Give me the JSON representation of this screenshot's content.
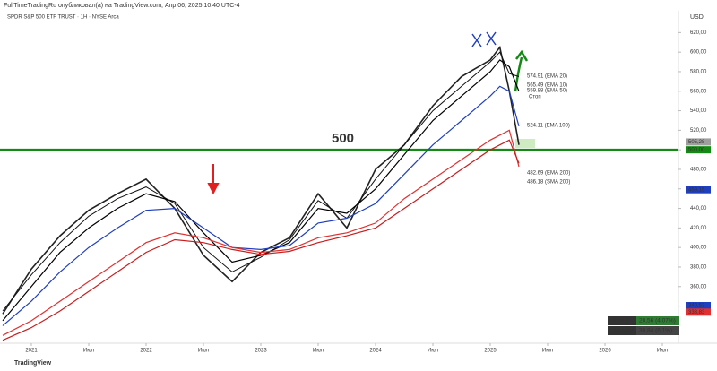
{
  "chart_data": {
    "type": "line",
    "title": "SPDR S&P 500 ETF TRUST · 1H · NYSE Arca",
    "header": "FullTimeTradingRu опубликовал(а) на TradingView.com, Апр 06, 2025 10:40 UTC-4",
    "currency": "USD",
    "brand": "TradingView",
    "x": [
      "2020-10",
      "2021-01",
      "2021-04",
      "2021-07",
      "2021-10",
      "2022-01",
      "2022-04",
      "2022-07",
      "2022-10",
      "2023-01",
      "2023-04",
      "2023-07",
      "2023-10",
      "2024-01",
      "2024-04",
      "2024-07",
      "2024-10",
      "2025-01",
      "2025-02",
      "2025-03",
      "2025-04"
    ],
    "series": [
      {
        "color": "#222222",
        "width": 1.6,
        "values": [
          332,
          378,
          412,
          438,
          455,
          470,
          440,
          392,
          365,
          395,
          410,
          455,
          420,
          480,
          505,
          545,
          575,
          592,
          605,
          560,
          505
        ]
      },
      {
        "name": "EMA 20",
        "color": "#111111",
        "width": 1,
        "values": [
          335,
          372,
          405,
          432,
          450,
          462,
          445,
          400,
          375,
          390,
          408,
          448,
          430,
          470,
          505,
          540,
          565,
          590,
          600,
          578,
          574.91
        ]
      },
      {
        "name": "EMA 50",
        "color": "#000000",
        "width": 1.2,
        "values": [
          325,
          360,
          395,
          420,
          440,
          455,
          447,
          415,
          385,
          392,
          405,
          440,
          435,
          460,
          495,
          530,
          555,
          580,
          592,
          585,
          559.88
        ]
      },
      {
        "name": "EMA 100",
        "color": "#1f3fbf",
        "width": 1.2,
        "values": [
          320,
          345,
          375,
          400,
          420,
          438,
          440,
          420,
          400,
          398,
          402,
          425,
          430,
          445,
          475,
          505,
          530,
          555,
          565,
          560,
          524.11
        ]
      },
      {
        "name": "EMA 200",
        "color": "#e03030",
        "width": 1.2,
        "values": [
          310,
          325,
          345,
          365,
          385,
          405,
          415,
          410,
          400,
          395,
          398,
          410,
          415,
          425,
          450,
          470,
          490,
          510,
          515,
          520,
          482.69
        ]
      },
      {
        "name": "SMA 200",
        "color": "#c81e1e",
        "width": 1.2,
        "values": [
          305,
          318,
          335,
          355,
          375,
          395,
          408,
          405,
          398,
          393,
          396,
          405,
          412,
          420,
          440,
          460,
          480,
          500,
          505,
          510,
          486.18
        ]
      }
    ],
    "level": {
      "value": 500,
      "label": "500",
      "color": "#138a13"
    },
    "annotations": [
      "574.91 (EMA 20)",
      "565.49 (EMA 10)",
      "559.88 (EMA 50)",
      "Стоп",
      "524.11 (EMA 100)",
      "482.69 (EMA 200)",
      "486.18 (SMA 200)"
    ],
    "price_tags": [
      {
        "value": 505.28,
        "label": "505,28",
        "color": "#9e9e9e"
      },
      {
        "value": 500,
        "label": "500,00",
        "color": "#138a13"
      },
      {
        "value": 459.15,
        "label": "459,15",
        "color": "#1f3fbf"
      },
      {
        "value": 340.53,
        "label": "340,53",
        "color": "#1f3fbf"
      },
      {
        "value": 333.83,
        "label": "333,83",
        "color": "#e03030"
      }
    ],
    "atr": [
      [
        "1 ATR",
        "20,56 (4,07%)"
      ],
      [
        "1,5 ATR",
        "30,84 (6,1%)"
      ]
    ],
    "ylim": [
      302,
      635
    ],
    "yticks": [
      {
        "value": 340,
        "label": "340,00"
      },
      {
        "value": 360,
        "label": "360,00"
      },
      {
        "value": 380,
        "label": "380,00"
      },
      {
        "value": 400,
        "label": "400,00"
      },
      {
        "value": 420,
        "label": "420,00"
      },
      {
        "value": 440,
        "label": "440,00"
      },
      {
        "value": 460,
        "label": "460,00"
      },
      {
        "value": 480,
        "label": "480,00"
      },
      {
        "value": 500,
        "label": "500,00"
      },
      {
        "value": 520,
        "label": "520,00"
      },
      {
        "value": 540,
        "label": "540,00"
      },
      {
        "value": 560,
        "label": "560,00"
      },
      {
        "value": 580,
        "label": "580,00"
      },
      {
        "value": 600,
        "label": "600,00"
      },
      {
        "value": 620,
        "label": "620,00"
      }
    ],
    "xticks": [
      {
        "value": "2021-01",
        "label": "2021"
      },
      {
        "value": "2021-07",
        "label": "Июл"
      },
      {
        "value": "2022-01",
        "label": "2022"
      },
      {
        "value": "2022-07",
        "label": "Июл"
      },
      {
        "value": "2023-01",
        "label": "2023"
      },
      {
        "value": "2023-07",
        "label": "Июл"
      },
      {
        "value": "2024-01",
        "label": "2024"
      },
      {
        "value": "2024-07",
        "label": "Июл"
      },
      {
        "value": "2025-01",
        "label": "2025"
      },
      {
        "value": "2025-07",
        "label": "Июл"
      },
      {
        "value": "2026-01",
        "label": "2026"
      },
      {
        "value": "2026-07",
        "label": "Июл"
      }
    ]
  }
}
